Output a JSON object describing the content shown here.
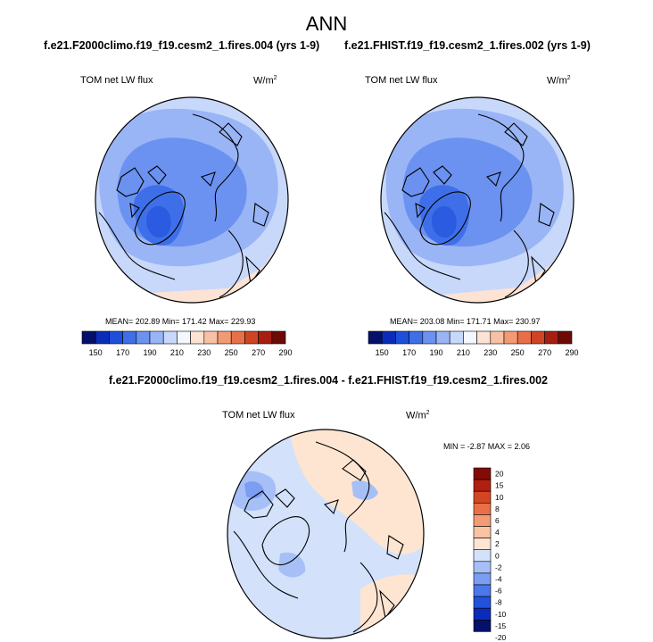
{
  "figure": {
    "title": "ANN",
    "diff_title": "f.e21.F2000climo.f19_f19.cesm2_1.fires.004 - f.e21.FHIST.f19_f19.cesm2_1.fires.002"
  },
  "colors": {
    "abs_palette": [
      "#05106b",
      "#0a2cb8",
      "#1d4fdb",
      "#3f6fe8",
      "#6b92f0",
      "#99b5f6",
      "#c8d8fb",
      "#f4f7ff",
      "#fde3d3",
      "#f9c1a4",
      "#f39a75",
      "#e86f48",
      "#cf4524",
      "#a61e10",
      "#6e0a06"
    ],
    "diff_palette": [
      "#05106b",
      "#0a2cb8",
      "#2252dc",
      "#4a78ea",
      "#7b9df2",
      "#a6c0f7",
      "#d3e1fb",
      "#fde5d2",
      "#f9c3a4",
      "#f39b74",
      "#e86f47",
      "#d44621",
      "#b01f10",
      "#820b06"
    ],
    "land_outline": "#000000"
  },
  "chart_data": [
    {
      "type": "heatmap",
      "projection": "north-polar-stereographic",
      "case": "f.e21.F2000climo.f19_f19.cesm2_1.fires.004 (yrs 1-9)",
      "variable": "TOM net LW flux",
      "units_base": "W/m",
      "units_exp": "2",
      "stats": {
        "mean": 202.89,
        "min": 171.42,
        "max": 229.93
      },
      "stats_text": "MEAN= 202.89  Min= 171.42  Max= 229.93",
      "levels": [
        150,
        160,
        170,
        180,
        190,
        200,
        210,
        220,
        230,
        240,
        250,
        260,
        270,
        280,
        290
      ],
      "tick_labels": [
        "150",
        "170",
        "190",
        "210",
        "230",
        "250",
        "270",
        "290"
      ],
      "colorbar": "horizontal-bottom"
    },
    {
      "type": "heatmap",
      "projection": "north-polar-stereographic",
      "case": "f.e21.FHIST.f19_f19.cesm2_1.fires.002 (yrs 1-9)",
      "variable": "TOM net LW flux",
      "units_base": "W/m",
      "units_exp": "2",
      "stats": {
        "mean": 203.08,
        "min": 171.71,
        "max": 230.97
      },
      "stats_text": "MEAN= 203.08  Min= 171.71  Max= 230.97",
      "levels": [
        150,
        160,
        170,
        180,
        190,
        200,
        210,
        220,
        230,
        240,
        250,
        260,
        270,
        280,
        290
      ],
      "tick_labels": [
        "150",
        "170",
        "190",
        "210",
        "230",
        "250",
        "270",
        "290"
      ],
      "colorbar": "horizontal-bottom"
    },
    {
      "type": "heatmap",
      "projection": "north-polar-stereographic",
      "case": "difference",
      "variable": "TOM net LW flux",
      "units_base": "W/m",
      "units_exp": "2",
      "stats": {
        "min": -2.87,
        "max": 2.06
      },
      "stats_text": "MIN =  -2.87 MAX =   2.06",
      "levels": [
        -20,
        -15,
        -10,
        -8,
        -6,
        -4,
        -2,
        0,
        2,
        4,
        6,
        8,
        10,
        15,
        20
      ],
      "tick_labels": [
        "20",
        "15",
        "10",
        "8",
        "6",
        "4",
        "2",
        "0",
        "-2",
        "-4",
        "-6",
        "-8",
        "-10",
        "-15",
        "-20"
      ],
      "colorbar": "vertical-right"
    }
  ]
}
